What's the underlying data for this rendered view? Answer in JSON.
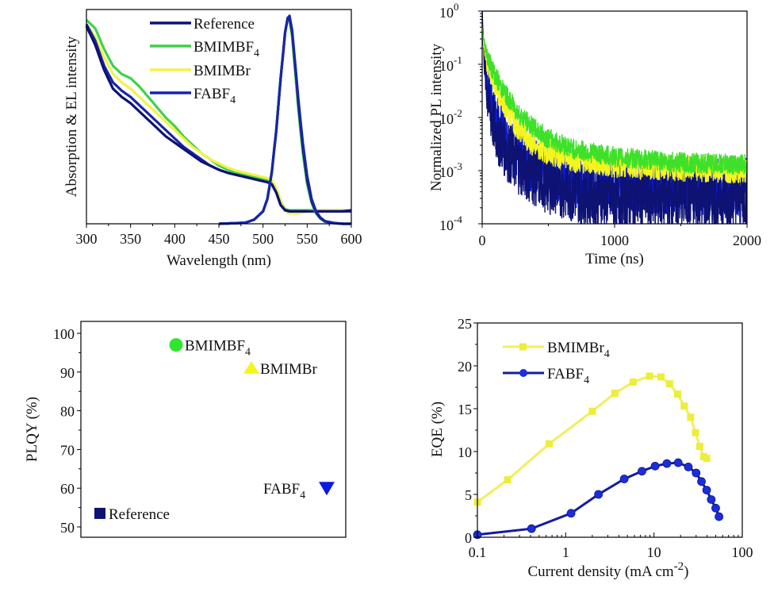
{
  "chart_data": [
    {
      "id": "absorption_el",
      "type": "line",
      "title": "",
      "xlabel": "Wavelength (nm)",
      "ylabel": "Absorption & EL intensity",
      "xlim": [
        300,
        600
      ],
      "ylim": [
        0,
        1
      ],
      "xticks": [
        300,
        350,
        400,
        450,
        500,
        550,
        600
      ],
      "yticks": [],
      "grid": false,
      "legend": {
        "placement": "top-center",
        "entries": [
          {
            "label": "Reference",
            "sub": "",
            "color": "#0d1273"
          },
          {
            "label": "BMIMBF",
            "sub": "4",
            "color": "#3fd14a"
          },
          {
            "label": "BMIMBr",
            "sub": "",
            "color": "#f3f24a"
          },
          {
            "label": "FABF",
            "sub": "4",
            "color": "#1626a8"
          }
        ]
      },
      "series": [
        {
          "name": "BMIMBF4 absorption",
          "color": "#3fd14a",
          "x": [
            300,
            310,
            320,
            330,
            340,
            350,
            360,
            370,
            380,
            390,
            400,
            410,
            420,
            430,
            440,
            450,
            460,
            470,
            480,
            490,
            500,
            505,
            510,
            515,
            520,
            525,
            530,
            535,
            540,
            550,
            560,
            570,
            580,
            590,
            600
          ],
          "y": [
            0.98,
            0.94,
            0.84,
            0.76,
            0.72,
            0.7,
            0.66,
            0.61,
            0.56,
            0.51,
            0.47,
            0.42,
            0.38,
            0.34,
            0.31,
            0.28,
            0.26,
            0.245,
            0.235,
            0.225,
            0.215,
            0.21,
            0.205,
            0.17,
            0.11,
            0.07,
            0.065,
            0.065,
            0.065,
            0.065,
            0.065,
            0.065,
            0.065,
            0.065,
            0.065
          ]
        },
        {
          "name": "BMIMBr absorption",
          "color": "#f3f24a",
          "x": [
            300,
            310,
            320,
            330,
            340,
            350,
            360,
            370,
            380,
            390,
            400,
            410,
            420,
            430,
            440,
            450,
            460,
            470,
            480,
            490,
            500,
            505,
            510,
            515,
            520,
            525,
            530,
            535,
            540,
            550,
            560,
            570,
            580,
            590,
            600
          ],
          "y": [
            0.96,
            0.9,
            0.8,
            0.72,
            0.68,
            0.65,
            0.61,
            0.57,
            0.53,
            0.49,
            0.45,
            0.41,
            0.37,
            0.34,
            0.31,
            0.29,
            0.27,
            0.255,
            0.245,
            0.235,
            0.225,
            0.22,
            0.21,
            0.17,
            0.11,
            0.065,
            0.05,
            0.05,
            0.05,
            0.06,
            0.065,
            0.065,
            0.065,
            0.065,
            0.065
          ]
        },
        {
          "name": "FABF4 absorption",
          "color": "#1626a8",
          "x": [
            300,
            310,
            320,
            330,
            340,
            350,
            360,
            370,
            380,
            390,
            400,
            410,
            420,
            430,
            440,
            450,
            460,
            470,
            480,
            490,
            500,
            505,
            510,
            515,
            520,
            525,
            530,
            535,
            540,
            550,
            560,
            570,
            580,
            590,
            600
          ],
          "y": [
            0.96,
            0.88,
            0.76,
            0.68,
            0.64,
            0.61,
            0.57,
            0.53,
            0.49,
            0.45,
            0.41,
            0.37,
            0.34,
            0.31,
            0.28,
            0.26,
            0.245,
            0.235,
            0.225,
            0.215,
            0.205,
            0.2,
            0.19,
            0.15,
            0.09,
            0.065,
            0.06,
            0.06,
            0.06,
            0.06,
            0.06,
            0.06,
            0.06,
            0.06,
            0.065
          ]
        },
        {
          "name": "Reference absorption",
          "color": "#0d1273",
          "x": [
            300,
            310,
            320,
            330,
            340,
            350,
            360,
            370,
            380,
            390,
            400,
            410,
            420,
            430,
            440,
            450,
            460,
            470,
            480,
            490,
            500,
            505,
            510,
            515,
            520,
            525,
            530,
            535,
            540,
            550,
            560,
            570,
            580,
            590,
            600
          ],
          "y": [
            0.95,
            0.86,
            0.74,
            0.65,
            0.61,
            0.58,
            0.54,
            0.5,
            0.46,
            0.42,
            0.39,
            0.36,
            0.33,
            0.3,
            0.28,
            0.26,
            0.245,
            0.235,
            0.225,
            0.215,
            0.205,
            0.2,
            0.19,
            0.15,
            0.09,
            0.065,
            0.06,
            0.06,
            0.06,
            0.06,
            0.06,
            0.06,
            0.06,
            0.06,
            0.06
          ]
        },
        {
          "name": "BMIMBF4 EL",
          "color": "#3fd14a",
          "x": [
            450,
            480,
            490,
            500,
            505,
            510,
            515,
            520,
            525,
            528,
            530,
            533,
            536,
            540,
            545,
            550,
            555,
            560,
            565,
            570,
            580,
            590,
            600
          ],
          "y": [
            0,
            0.005,
            0.02,
            0.06,
            0.12,
            0.25,
            0.45,
            0.7,
            0.92,
            0.99,
            0.98,
            0.9,
            0.75,
            0.55,
            0.34,
            0.19,
            0.1,
            0.05,
            0.025,
            0.01,
            0.003,
            0,
            0
          ]
        },
        {
          "name": "BMIMBr EL",
          "color": "#f3f24a",
          "x": [
            450,
            480,
            490,
            500,
            505,
            510,
            515,
            520,
            525,
            528,
            530,
            533,
            536,
            540,
            545,
            550,
            555,
            560,
            565,
            570,
            580,
            590,
            600
          ],
          "y": [
            0,
            0.005,
            0.02,
            0.06,
            0.12,
            0.25,
            0.45,
            0.7,
            0.92,
            0.99,
            0.99,
            0.92,
            0.78,
            0.58,
            0.37,
            0.21,
            0.11,
            0.055,
            0.027,
            0.012,
            0.004,
            0,
            0
          ]
        },
        {
          "name": "Reference EL",
          "color": "#0d1273",
          "x": [
            450,
            480,
            490,
            500,
            505,
            510,
            515,
            520,
            525,
            528,
            530,
            533,
            536,
            540,
            545,
            550,
            555,
            560,
            565,
            570,
            580,
            590,
            600
          ],
          "y": [
            0,
            0.005,
            0.02,
            0.06,
            0.12,
            0.25,
            0.45,
            0.7,
            0.92,
            0.99,
            0.99,
            0.92,
            0.78,
            0.58,
            0.37,
            0.21,
            0.11,
            0.055,
            0.027,
            0.012,
            0.004,
            0,
            0
          ]
        },
        {
          "name": "FABF4 EL",
          "color": "#1626a8",
          "x": [
            450,
            480,
            490,
            500,
            505,
            510,
            515,
            520,
            525,
            528,
            530,
            533,
            536,
            540,
            545,
            550,
            555,
            560,
            565,
            570,
            580,
            590,
            600
          ],
          "y": [
            0,
            0.005,
            0.02,
            0.06,
            0.12,
            0.25,
            0.45,
            0.7,
            0.92,
            0.99,
            1.0,
            0.93,
            0.79,
            0.6,
            0.39,
            0.23,
            0.12,
            0.06,
            0.03,
            0.013,
            0.004,
            0,
            0
          ]
        }
      ]
    },
    {
      "id": "pl_decay",
      "type": "line",
      "title": "",
      "xlabel": "Time (ns)",
      "ylabel": "Normalized PL intensity",
      "xlim": [
        0,
        2000
      ],
      "ylim": [
        0.0001,
        1
      ],
      "yscale": "log",
      "xticks": [
        0,
        1000,
        2000
      ],
      "yticks": [
        {
          "base": "10",
          "exp": "0"
        },
        {
          "base": "10",
          "exp": "-1"
        },
        {
          "base": "10",
          "exp": "-2"
        },
        {
          "base": "10",
          "exp": "-3"
        },
        {
          "base": "10",
          "exp": "-4"
        }
      ],
      "grid": false,
      "series": [
        {
          "name": "FABF4",
          "color": "#0a1ae0",
          "noise": 0.55,
          "x": [
            0,
            10,
            25,
            50,
            75,
            100,
            150,
            200,
            300,
            400,
            500,
            700,
            1000,
            1500,
            2000
          ],
          "y": [
            1,
            0.25,
            0.08,
            0.03,
            0.015,
            0.009,
            0.005,
            0.003,
            0.0017,
            0.0012,
            0.0009,
            0.0007,
            0.0006,
            0.0005,
            0.0005
          ]
        },
        {
          "name": "Reference",
          "color": "#0d1273",
          "noise": 0.6,
          "x": [
            0,
            10,
            25,
            50,
            75,
            100,
            150,
            200,
            300,
            400,
            500,
            700,
            1000,
            1500,
            2000
          ],
          "y": [
            1,
            0.2,
            0.06,
            0.02,
            0.01,
            0.006,
            0.0035,
            0.0022,
            0.0012,
            0.0008,
            0.0006,
            0.0004,
            0.0003,
            0.0003,
            0.0003
          ]
        },
        {
          "name": "BMIMBr",
          "color": "#f5f51e",
          "noise": 0.25,
          "x": [
            0,
            10,
            25,
            50,
            100,
            150,
            200,
            300,
            400,
            500,
            700,
            1000,
            1500,
            2000
          ],
          "y": [
            0.5,
            0.25,
            0.15,
            0.09,
            0.04,
            0.02,
            0.012,
            0.005,
            0.003,
            0.0022,
            0.0016,
            0.0013,
            0.0011,
            0.001
          ]
        },
        {
          "name": "BMIMBF4",
          "color": "#3ee02a",
          "noise": 0.2,
          "x": [
            0,
            10,
            25,
            50,
            100,
            150,
            200,
            300,
            400,
            500,
            700,
            1000,
            1500,
            2000
          ],
          "y": [
            0.45,
            0.3,
            0.2,
            0.12,
            0.06,
            0.035,
            0.022,
            0.01,
            0.006,
            0.004,
            0.0025,
            0.0018,
            0.0014,
            0.0013
          ]
        }
      ]
    },
    {
      "id": "plqy",
      "type": "scatter",
      "title": "",
      "xlabel": "",
      "ylabel": "PLQY (%)",
      "ylim": [
        47,
        103
      ],
      "yticks": [
        50,
        60,
        70,
        80,
        90,
        100
      ],
      "grid": false,
      "points": [
        {
          "label": "Reference",
          "sub": "",
          "value": 53.5,
          "marker": "square",
          "color": "#0d1273",
          "label_side": "right"
        },
        {
          "label": "BMIMBF",
          "sub": "4",
          "value": 97,
          "marker": "circle",
          "color": "#2ee62e",
          "label_side": "right"
        },
        {
          "label": "BMIMBr",
          "sub": "",
          "value": 91,
          "marker": "triangle-up",
          "color": "#f5f51e",
          "label_side": "right"
        },
        {
          "label": "FABF",
          "sub": "4",
          "value": 60,
          "marker": "triangle-down",
          "color": "#0a1ae0",
          "label_side": "left"
        }
      ]
    },
    {
      "id": "eqe",
      "type": "line",
      "title": "",
      "xlabel": "Current density (mA cm",
      "xlabel_sup": "-2",
      "xlabel_tail": ")",
      "ylabel": "EQE (%)",
      "xlim": [
        0.1,
        100
      ],
      "xscale": "log",
      "ylim": [
        0,
        25
      ],
      "xticks": [
        "0.1",
        "1",
        "10",
        "100"
      ],
      "yticks": [
        0,
        5,
        10,
        15,
        20,
        25
      ],
      "grid": false,
      "legend": {
        "placement": "top-left",
        "entries": [
          {
            "label": "BMIMBr",
            "sub": "4",
            "color": "#f0f05a"
          },
          {
            "label": "FABF",
            "sub": "4",
            "color": "#141c9c"
          }
        ]
      },
      "series": [
        {
          "name": "BMIMBr4",
          "color": "#f0f05a",
          "marker_color": "#eded3a",
          "marker": "square",
          "x": [
            0.1,
            0.22,
            0.65,
            2.0,
            3.6,
            5.8,
            8.9,
            12.0,
            15.0,
            18.5,
            22.0,
            26.0,
            29.5,
            33.0,
            36.5,
            39.5
          ],
          "y": [
            4.1,
            6.7,
            10.9,
            14.7,
            16.8,
            18.1,
            18.8,
            18.7,
            17.9,
            16.7,
            15.3,
            14.0,
            12.2,
            10.6,
            9.4,
            9.2
          ]
        },
        {
          "name": "FABF4",
          "color": "#141c9c",
          "marker_color": "#1a2ee0",
          "marker": "circle",
          "x": [
            0.1,
            0.41,
            1.15,
            2.35,
            4.6,
            7.3,
            10.3,
            14.0,
            18.8,
            24.5,
            30.0,
            34.5,
            39.5,
            44.5,
            50.0,
            54.5
          ],
          "y": [
            0.3,
            1.0,
            2.8,
            5.0,
            6.8,
            7.7,
            8.3,
            8.6,
            8.7,
            8.2,
            7.5,
            6.5,
            5.5,
            4.4,
            3.4,
            2.4
          ]
        }
      ]
    }
  ]
}
